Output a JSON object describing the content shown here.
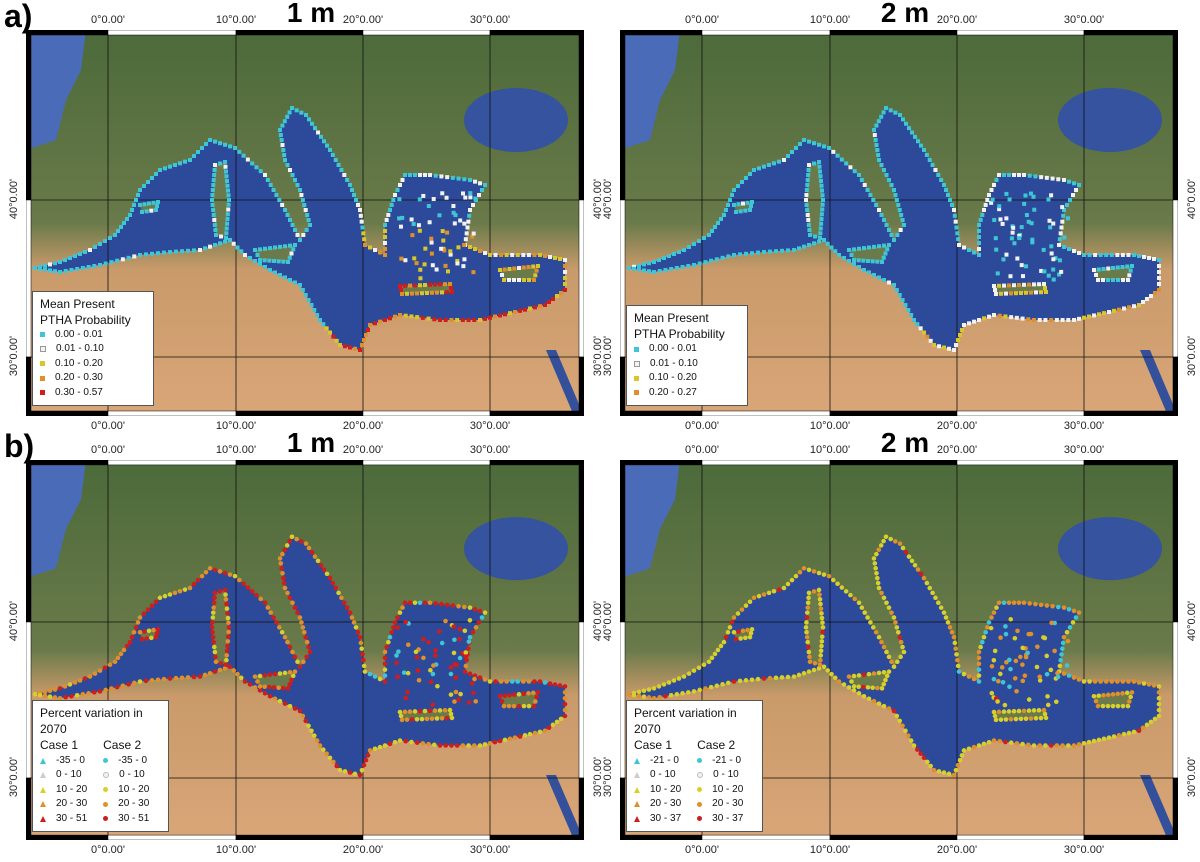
{
  "panels": [
    {
      "label": "a)",
      "title": "1 m",
      "legend": {
        "title1": "Mean Present",
        "title2": "PTHA Probability",
        "items": [
          {
            "range": "0.00 - 0.01",
            "color": "#3ec6d6"
          },
          {
            "range": "0.01 - 0.10",
            "color": "#f2f2f2"
          },
          {
            "range": "0.10 - 0.20",
            "color": "#d8c62a"
          },
          {
            "range": "0.20 - 0.30",
            "color": "#e0902a"
          },
          {
            "range": "0.30 - 0.57",
            "color": "#d21c1c"
          }
        ]
      }
    },
    {
      "label": "",
      "title": "2 m",
      "legend": {
        "title1": "Mean Present",
        "title2": "PTHA Probability",
        "items": [
          {
            "range": "0.00 - 0.01",
            "color": "#3ec6d6"
          },
          {
            "range": "0.01 - 0.10",
            "color": "#f2f2f2"
          },
          {
            "range": "0.10 - 0.20",
            "color": "#d8c62a"
          },
          {
            "range": "0.20 - 0.27",
            "color": "#e0902a"
          }
        ]
      }
    },
    {
      "label": "b)",
      "title": "1 m",
      "legend": {
        "title": "Percent variation in 2070",
        "case1": "Case 1",
        "case2": "Case 2",
        "items": [
          {
            "range": "-35 - 0",
            "color": "#3ec6d6"
          },
          {
            "range": "0 - 10",
            "color": "#f2f2f2"
          },
          {
            "range": "10 - 20",
            "color": "#d8d02a"
          },
          {
            "range": "20 - 30",
            "color": "#e0902a"
          },
          {
            "range": "30 - 51",
            "color": "#d21c1c"
          }
        ]
      }
    },
    {
      "label": "",
      "title": "2 m",
      "legend": {
        "title": "Percent variation in 2070",
        "case1": "Case 1",
        "case2": "Case 2",
        "items": [
          {
            "range": "-21 - 0",
            "color": "#3ec6d6"
          },
          {
            "range": "0 - 10",
            "color": "#f2f2f2"
          },
          {
            "range": "10 - 20",
            "color": "#d8d02a"
          },
          {
            "range": "20 - 30",
            "color": "#e0902a"
          },
          {
            "range": "30 - 37",
            "color": "#d21c1c"
          }
        ]
      }
    }
  ],
  "axes": {
    "lon_ticks": [
      "0°0.00'",
      "10°0.00'",
      "20°0.00'",
      "30°0.00'"
    ],
    "lat_ticks": [
      "40°0.00'",
      "30°0.00'"
    ]
  },
  "colors": {
    "sea": "#2d4a9a",
    "land_north": "#4c6a3a",
    "land_south": "#d9a678"
  }
}
